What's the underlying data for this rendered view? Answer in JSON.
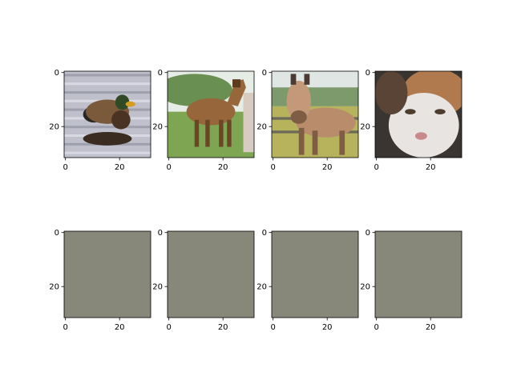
{
  "figure": {
    "background": "#ffffff",
    "axis_color": "#000000"
  },
  "axes_defaults": {
    "x_ticks": [
      0,
      20
    ],
    "y_ticks": [
      0,
      20
    ],
    "x_tick_labels": [
      "0",
      "20"
    ],
    "y_tick_labels": [
      "0",
      "20"
    ],
    "xlim": [
      -0.5,
      31.5
    ],
    "ylim": [
      31.5,
      -0.5
    ],
    "image_size": 32
  },
  "images": [
    {
      "subject": "duck",
      "placeholder_color": "#8a8a7a",
      "scene": {
        "type": "duck",
        "background": "#bfc0cc",
        "ripple": "#d8d9e2",
        "ripple_dark": "#9fa0ad",
        "body": "#7b5a3c",
        "breast": "#4a3323",
        "head": "#2f4a24",
        "bill": "#d89c20",
        "tail": "#2a2624",
        "shadow": "#3b2c22"
      }
    },
    {
      "subject": "horse",
      "placeholder_color": "#8a8a7a",
      "scene": {
        "type": "horse-side",
        "sky": "#e6ece6",
        "trees": "#6a8f52",
        "grass": "#7ea552",
        "body": "#97663b",
        "body_dark": "#6b4526",
        "mane": "#5e3a1f",
        "person": "#d8ccc2"
      }
    },
    {
      "subject": "horse",
      "placeholder_color": "#8a8a7a",
      "scene": {
        "type": "horse-front",
        "sky": "#dfe6e4",
        "trees": "#7c9a6c",
        "grass": "#b6b35c",
        "fence": "#6d6a58",
        "body": "#b98c6c",
        "body_dark": "#7f5d44",
        "face": "#c49979",
        "ear": "#4a3a32"
      }
    },
    {
      "subject": "cat",
      "placeholder_color": "#8a8a7a",
      "scene": {
        "type": "cat",
        "background": "#3a3530",
        "fur_white": "#e8e4e2",
        "fur_brown": "#b07a4e",
        "fur_dark": "#5a4436",
        "nose": "#c9888a",
        "eye": "#4d3d2f"
      }
    },
    {
      "subject": "placeholder",
      "placeholder_color": "#87877a",
      "scene": {
        "type": "flat"
      }
    },
    {
      "subject": "placeholder",
      "placeholder_color": "#87877a",
      "scene": {
        "type": "flat"
      }
    },
    {
      "subject": "placeholder",
      "placeholder_color": "#87877a",
      "scene": {
        "type": "flat"
      }
    },
    {
      "subject": "placeholder",
      "placeholder_color": "#87877a",
      "scene": {
        "type": "flat"
      }
    }
  ]
}
